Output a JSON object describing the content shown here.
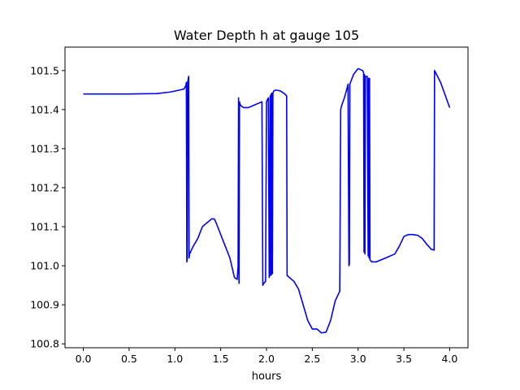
{
  "chart_data": {
    "type": "line",
    "title": "Water Depth h at gauge 105",
    "xlabel": "hours",
    "ylabel": "",
    "xlim": [
      -0.2,
      4.2
    ],
    "ylim": [
      100.79,
      101.56
    ],
    "xticks": [
      0.0,
      0.5,
      1.0,
      1.5,
      2.0,
      2.5,
      3.0,
      3.5,
      4.0
    ],
    "xtick_labels": [
      "0.0",
      "0.5",
      "1.0",
      "1.5",
      "2.0",
      "2.5",
      "3.0",
      "3.5",
      "4.0"
    ],
    "yticks": [
      100.8,
      100.9,
      101.0,
      101.1,
      101.2,
      101.3,
      101.4,
      101.5
    ],
    "ytick_labels": [
      "100.8",
      "100.9",
      "101.0",
      "101.1",
      "101.2",
      "101.3",
      "101.4",
      "101.5"
    ],
    "grid": false,
    "series": [
      {
        "color": "#0000ff",
        "x": [
          0.0,
          0.5,
          0.8,
          0.95,
          1.05,
          1.1,
          1.12,
          1.125,
          1.13,
          1.135,
          1.14,
          1.15,
          1.155,
          1.16,
          1.2,
          1.25,
          1.3,
          1.35,
          1.4,
          1.43,
          1.45,
          1.5,
          1.55,
          1.6,
          1.65,
          1.68,
          1.69,
          1.695,
          1.7,
          1.705,
          1.71,
          1.72,
          1.75,
          1.8,
          1.85,
          1.9,
          1.95,
          1.96,
          1.97,
          1.99,
          2.0,
          2.01,
          2.02,
          2.03,
          2.04,
          2.045,
          2.05,
          2.055,
          2.06,
          2.065,
          2.07,
          2.075,
          2.08,
          2.1,
          2.15,
          2.2,
          2.22,
          2.225,
          2.3,
          2.35,
          2.4,
          2.45,
          2.5,
          2.55,
          2.6,
          2.65,
          2.7,
          2.75,
          2.8,
          2.81,
          2.82,
          2.85,
          2.88,
          2.89,
          2.9,
          2.905,
          2.91,
          2.95,
          3.0,
          3.05,
          3.06,
          3.065,
          3.07,
          3.075,
          3.08,
          3.1,
          3.11,
          3.115,
          3.12,
          3.125,
          3.13,
          3.15,
          3.2,
          3.3,
          3.4,
          3.45,
          3.5,
          3.55,
          3.6,
          3.65,
          3.7,
          3.75,
          3.8,
          3.83,
          3.835,
          3.9,
          4.0
        ],
        "y": [
          101.44,
          101.44,
          101.441,
          101.445,
          101.45,
          101.453,
          101.462,
          101.47,
          101.01,
          101.02,
          101.47,
          101.485,
          101.02,
          101.03,
          101.05,
          101.07,
          101.1,
          101.11,
          101.12,
          101.12,
          101.11,
          101.08,
          101.05,
          101.02,
          100.97,
          100.965,
          101.0,
          101.43,
          100.955,
          101.42,
          101.415,
          101.41,
          101.405,
          101.405,
          101.41,
          101.415,
          101.42,
          100.95,
          100.955,
          100.96,
          101.42,
          101.425,
          101.43,
          100.97,
          101.435,
          100.975,
          101.44,
          100.978,
          101.442,
          100.98,
          101.443,
          101.445,
          101.448,
          101.45,
          101.448,
          101.44,
          101.435,
          100.975,
          100.96,
          100.94,
          100.9,
          100.86,
          100.838,
          100.838,
          100.828,
          100.83,
          100.86,
          100.91,
          100.935,
          101.4,
          101.41,
          101.43,
          101.455,
          101.465,
          101.0,
          101.005,
          101.465,
          101.49,
          101.505,
          101.5,
          101.495,
          101.035,
          101.49,
          101.03,
          101.485,
          101.485,
          101.025,
          101.48,
          101.02,
          101.48,
          101.015,
          101.01,
          101.01,
          101.02,
          101.03,
          101.05,
          101.075,
          101.08,
          101.08,
          101.078,
          101.07,
          101.055,
          101.042,
          101.04,
          101.5,
          101.47,
          101.405
        ]
      }
    ]
  }
}
